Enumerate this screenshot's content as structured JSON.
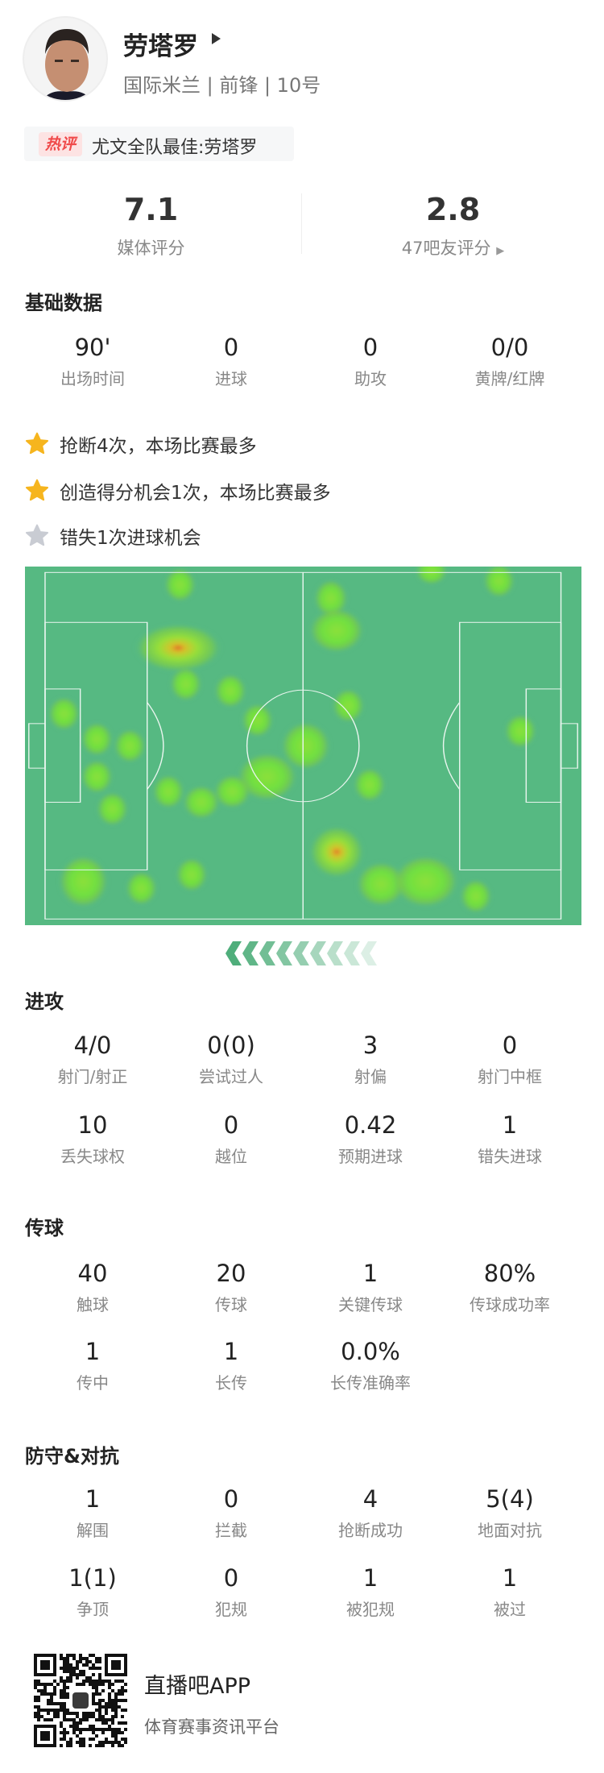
{
  "player": {
    "name": "劳塔罗",
    "team": "国际米兰",
    "position": "前锋",
    "number": "10号",
    "subtitle": "国际米兰 | 前锋 | 10号"
  },
  "hot_comment": {
    "tag": "热评",
    "text": "尤文全队最佳:劳塔罗"
  },
  "ratings": [
    {
      "value": "7.1",
      "label": "媒体评分"
    },
    {
      "value": "2.8",
      "label": "47吧友评分"
    }
  ],
  "basic": {
    "title": "基础数据",
    "stats": [
      {
        "value": "90'",
        "label": "出场时间"
      },
      {
        "value": "0",
        "label": "进球"
      },
      {
        "value": "0",
        "label": "助攻"
      },
      {
        "value": "0/0",
        "label": "黄牌/红牌"
      }
    ]
  },
  "highlights": [
    {
      "text": "抢断4次，本场比赛最多",
      "icon": "star-gold",
      "color": "#f6b51e"
    },
    {
      "text": "创造得分机会1次，本场比赛最多",
      "icon": "star-gold",
      "color": "#f6b51e"
    },
    {
      "text": "错失1次进球机会",
      "icon": "star-grey",
      "color": "#c9ccd3"
    }
  ],
  "heatmap": {
    "pitch_color": "#56b982",
    "attack_direction": "left"
  },
  "attack": {
    "title": "进攻",
    "stats": [
      {
        "value": "4/0",
        "label": "射门/射正"
      },
      {
        "value": "0(0)",
        "label": "尝试过人"
      },
      {
        "value": "3",
        "label": "射偏"
      },
      {
        "value": "0",
        "label": "射门中框"
      },
      {
        "value": "10",
        "label": "丢失球权"
      },
      {
        "value": "0",
        "label": "越位"
      },
      {
        "value": "0.42",
        "label": "预期进球"
      },
      {
        "value": "1",
        "label": "错失进球"
      }
    ]
  },
  "passing": {
    "title": "传球",
    "stats": [
      {
        "value": "40",
        "label": "触球"
      },
      {
        "value": "20",
        "label": "传球"
      },
      {
        "value": "1",
        "label": "关键传球"
      },
      {
        "value": "80%",
        "label": "传球成功率"
      },
      {
        "value": "1",
        "label": "传中"
      },
      {
        "value": "1",
        "label": "长传"
      },
      {
        "value": "0.0%",
        "label": "长传准确率"
      }
    ]
  },
  "defense": {
    "title": "防守&对抗",
    "stats": [
      {
        "value": "1",
        "label": "解围"
      },
      {
        "value": "0",
        "label": "拦截"
      },
      {
        "value": "4",
        "label": "抢断成功"
      },
      {
        "value": "5(4)",
        "label": "地面对抗"
      },
      {
        "value": "1(1)",
        "label": "争顶"
      },
      {
        "value": "0",
        "label": "犯规"
      },
      {
        "value": "1",
        "label": "被犯规"
      },
      {
        "value": "1",
        "label": "被过"
      }
    ]
  },
  "footer": {
    "app_name": "直播吧APP",
    "tagline": "体育赛事资讯平台"
  }
}
